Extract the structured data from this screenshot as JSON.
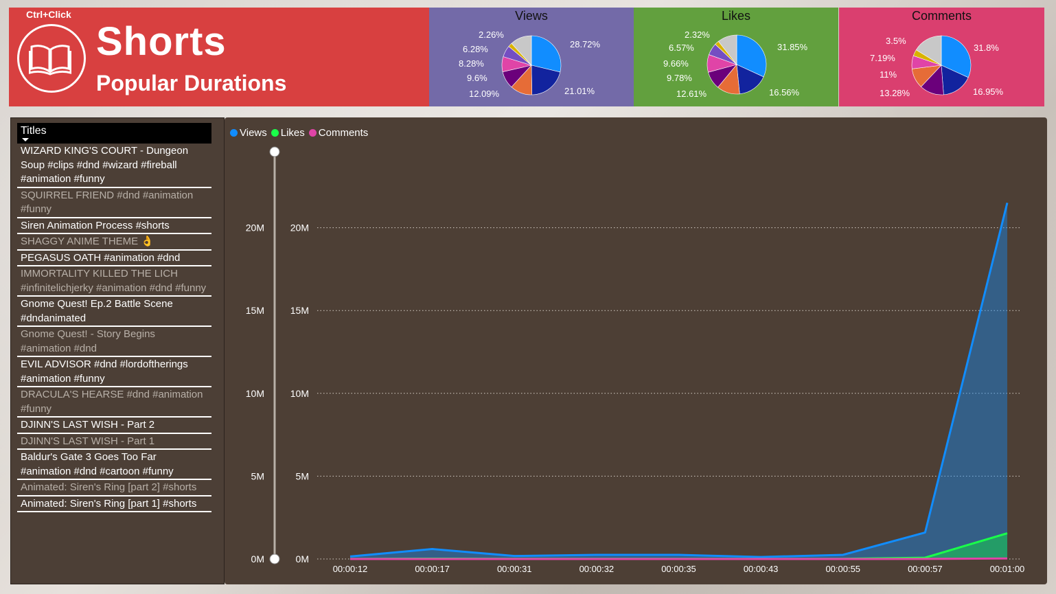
{
  "header": {
    "hint": "Ctrl+Click",
    "title": "Shorts",
    "subtitle": "Popular Durations",
    "icon": "book-icon"
  },
  "pies": [
    {
      "title": "Views",
      "slices": [
        28.72,
        21.01,
        12.09,
        9.6,
        8.28,
        6.28,
        2.26,
        11.76
      ],
      "colors": [
        "#118dff",
        "#12239e",
        "#e66c37",
        "#6b007b",
        "#e044a7",
        "#744ec2",
        "#d9b300",
        "#c8c8c8"
      ],
      "labels": [
        "28.72%",
        "21.01%",
        "12.09%",
        "9.6%",
        "8.28%",
        "6.28%",
        "2.26%"
      ]
    },
    {
      "title": "Likes",
      "slices": [
        31.85,
        16.56,
        12.61,
        9.78,
        9.66,
        6.57,
        2.32,
        10.65
      ],
      "colors": [
        "#118dff",
        "#12239e",
        "#e66c37",
        "#6b007b",
        "#e044a7",
        "#744ec2",
        "#d9b300",
        "#c8c8c8"
      ],
      "labels": [
        "31.85%",
        "16.56%",
        "12.61%",
        "9.78%",
        "9.66%",
        "6.57%",
        "2.32%"
      ]
    },
    {
      "title": "Comments",
      "slices": [
        31.8,
        16.95,
        13.28,
        11,
        7.19,
        3.5,
        16.28
      ],
      "colors": [
        "#118dff",
        "#12239e",
        "#6b007b",
        "#e66c37",
        "#e044a7",
        "#d9b300",
        "#c8c8c8"
      ],
      "labels": [
        "31.8%",
        "16.95%",
        "13.28%",
        "11%",
        "7.19%",
        "3.5%"
      ]
    }
  ],
  "titles_panel": {
    "header": "Titles",
    "items": [
      {
        "text": "WIZARD KING'S COURT - Dungeon Soup #clips #dnd #wizard #fireball #animation #funny",
        "dim": false
      },
      {
        "text": "SQUIRREL FRIEND #dnd #animation #funny",
        "dim": true
      },
      {
        "text": "Siren Animation Process #shorts",
        "dim": false
      },
      {
        "text": "SHAGGY ANIME THEME 👌",
        "dim": true
      },
      {
        "text": "PEGASUS OATH #animation #dnd",
        "dim": false
      },
      {
        "text": "IMMORTALITY KILLED THE LICH #infinitelichjerky #animation #dnd #funny",
        "dim": true
      },
      {
        "text": "Gnome Quest! Ep.2 Battle Scene #dndanimated",
        "dim": false
      },
      {
        "text": "Gnome Quest! - Story Begins #animation #dnd",
        "dim": true
      },
      {
        "text": "EVIL ADVISOR #dnd #lordoftherings #animation #funny",
        "dim": false
      },
      {
        "text": "DRACULA'S HEARSE #dnd #animation #funny",
        "dim": true
      },
      {
        "text": "DJINN'S LAST WISH - Part 2",
        "dim": false
      },
      {
        "text": "DJINN'S LAST WISH - Part 1",
        "dim": true
      },
      {
        "text": "Baldur's Gate 3 Goes Too Far #animation #dnd #cartoon #funny",
        "dim": false
      },
      {
        "text": "Animated: Siren's Ring [part 2] #shorts",
        "dim": true
      },
      {
        "text": "Animated: Siren's Ring [part 1] #shorts",
        "dim": false
      }
    ]
  },
  "chart_data": {
    "type": "area",
    "title": "",
    "xlabel": "",
    "ylabel": "",
    "categories": [
      "00:00:12",
      "00:00:17",
      "00:00:31",
      "00:00:32",
      "00:00:35",
      "00:00:43",
      "00:00:55",
      "00:00:57",
      "00:01:00"
    ],
    "series": [
      {
        "name": "Views",
        "color": "#118dff",
        "values": [
          150000,
          600000,
          180000,
          250000,
          250000,
          120000,
          250000,
          1600000,
          21500000
        ]
      },
      {
        "name": "Likes",
        "color": "#1aff4a",
        "values": [
          5000,
          20000,
          8000,
          10000,
          10000,
          5000,
          10000,
          80000,
          1550000
        ]
      },
      {
        "name": "Comments",
        "color": "#e044a7",
        "values": [
          500,
          1000,
          600,
          700,
          700,
          400,
          600,
          3000,
          30000
        ]
      }
    ],
    "ylim": [
      0,
      25000000
    ],
    "yticks": [
      "0M",
      "5M",
      "10M",
      "15M",
      "20M"
    ],
    "ytick_values": [
      0,
      5000000,
      10000000,
      15000000,
      20000000
    ],
    "slider_ticks": [
      "0M",
      "5M",
      "10M",
      "15M",
      "20M"
    ],
    "grid": true,
    "legend": "top-left"
  }
}
